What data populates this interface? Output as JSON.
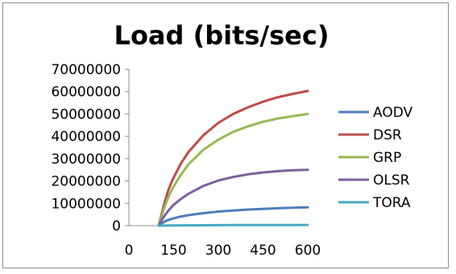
{
  "chart_data": {
    "type": "line",
    "title": "Load (bits/sec)",
    "xlabel": "",
    "ylabel": "",
    "xlim": [
      0,
      600
    ],
    "ylim": [
      0,
      70000000
    ],
    "x_ticks": [
      "0",
      "150",
      "300",
      "450",
      "600"
    ],
    "y_ticks": [
      "0",
      "10000000",
      "20000000",
      "30000000",
      "40000000",
      "50000000",
      "60000000",
      "70000000"
    ],
    "grid": false,
    "legend": "right",
    "x": [
      100,
      110,
      120,
      130,
      140,
      150,
      175,
      200,
      250,
      300,
      350,
      400,
      450,
      500,
      550,
      600
    ],
    "series": [
      {
        "name": "AODV",
        "color": "#4a7ebb",
        "values": [
          0,
          1000000,
          1800000,
          2400000,
          2900000,
          3300000,
          4100000,
          4700000,
          5600000,
          6300000,
          6800000,
          7200000,
          7500000,
          7800000,
          8000000,
          8200000
        ]
      },
      {
        "name": "DSR",
        "color": "#be4b48",
        "values": [
          0,
          5500000,
          10500000,
          15000000,
          18500000,
          21500000,
          28000000,
          33000000,
          40500000,
          46000000,
          50000000,
          53000000,
          55500000,
          57500000,
          59000000,
          60300000
        ]
      },
      {
        "name": "GRP",
        "color": "#98b954",
        "values": [
          0,
          4500000,
          8500000,
          12000000,
          15000000,
          17500000,
          23000000,
          27500000,
          34000000,
          38500000,
          42000000,
          44500000,
          46500000,
          48000000,
          49000000,
          50000000
        ]
      },
      {
        "name": "OLSR",
        "color": "#7d60a0",
        "values": [
          0,
          2500000,
          4500000,
          6300000,
          7900000,
          9300000,
          12000000,
          14300000,
          17800000,
          20200000,
          21800000,
          23000000,
          23800000,
          24400000,
          24800000,
          25000000
        ]
      },
      {
        "name": "TORA",
        "color": "#46aac5",
        "values": [
          0,
          20000,
          40000,
          60000,
          80000,
          100000,
          130000,
          160000,
          190000,
          220000,
          240000,
          260000,
          275000,
          290000,
          300000,
          310000
        ]
      }
    ]
  }
}
